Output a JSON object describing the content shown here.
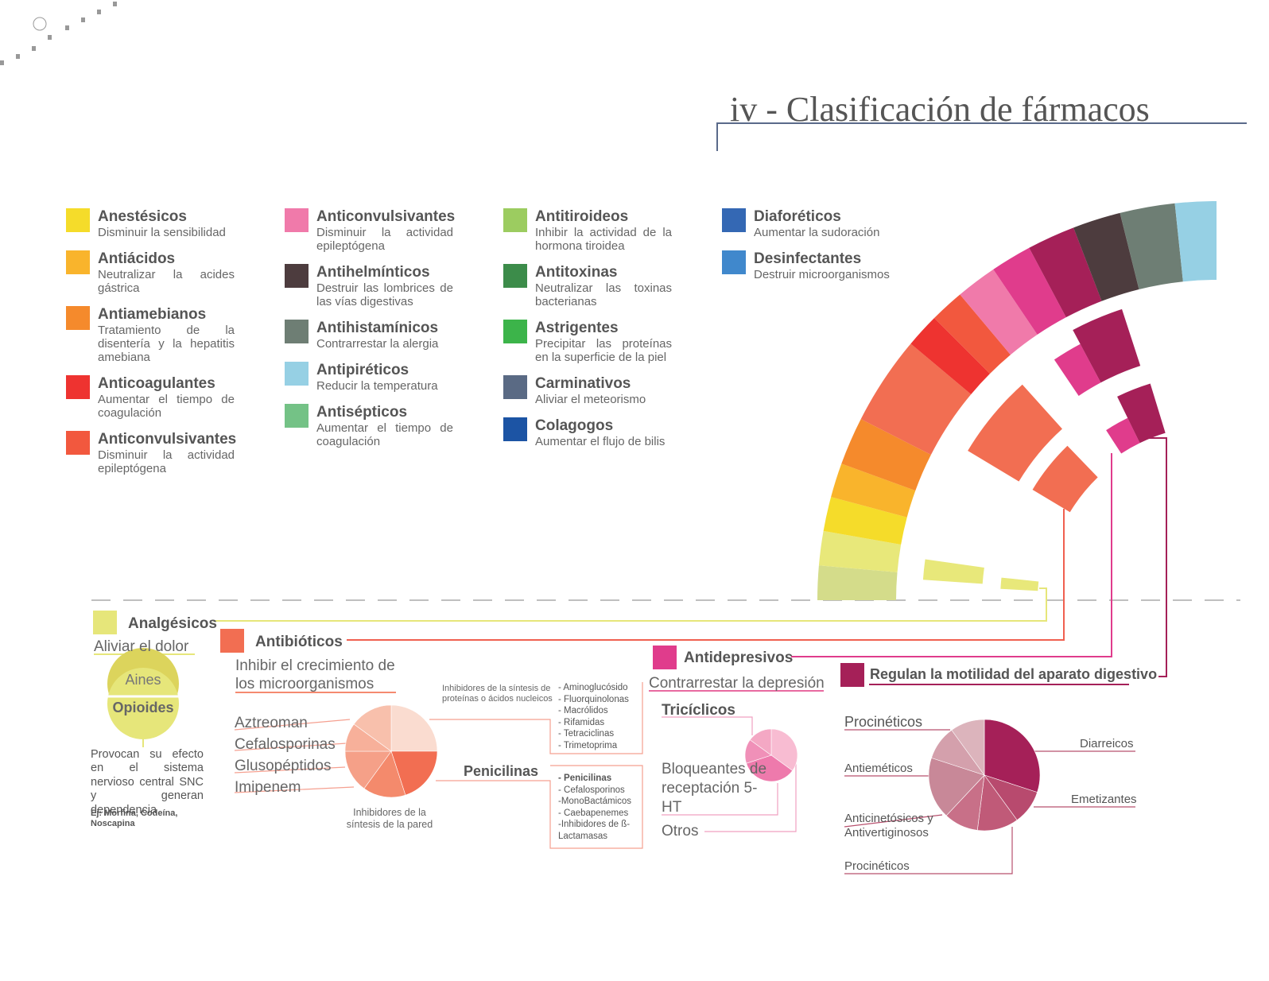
{
  "header": {
    "title": "iv -  Clasificación de fármacos"
  },
  "legend": {
    "columns": [
      [
        {
          "name": "Anestésicos",
          "description": "Disminuir la sensibilidad",
          "color": "#f5dc2a"
        },
        {
          "name": "Antiácidos",
          "description": "Neutralizar la acides gástrica",
          "color": "#f9b42c"
        },
        {
          "name": "Antiamebianos",
          "description": "Tratamiento de la disentería y la hepatitis amebiana",
          "color": "#f58a2c"
        },
        {
          "name": "Anticoagulantes",
          "description": "Aumentar el tiempo de coagulación",
          "color": "#ee3330"
        },
        {
          "name": "Anticonvulsivantes",
          "description": "Disminuir la actividad epileptógena",
          "color": "#f2583e"
        }
      ],
      [
        {
          "name": "Anticonvulsivantes",
          "description": "Disminuir la actividad epileptógena",
          "color": "#f07aaa"
        },
        {
          "name": "Antihelmínticos",
          "description": "Destruir las lombrices de las vías digestivas",
          "color": "#4d3c3e"
        },
        {
          "name": "Antihistamínicos",
          "description": "Contrarrestar la alergia",
          "color": "#6e7e74"
        },
        {
          "name": "Antipiréticos",
          "description": "Reducir la temperatura",
          "color": "#96d0e4"
        },
        {
          "name": "Antisépticos",
          "description": "Aumentar el tiempo de coagulación",
          "color": "#74c286"
        }
      ],
      [
        {
          "name": "Antitiroideos",
          "description": "Inhibir la actividad de la hormona tiroidea",
          "color": "#9ccc60"
        },
        {
          "name": "Antitoxinas",
          "description": "Neutralizar las toxinas bacterianas",
          "color": "#3c8c4a"
        },
        {
          "name": "Astrigentes",
          "description": "Precipitar las proteínas en la superficie de la piel",
          "color": "#3cb44a"
        },
        {
          "name": "Carminativos",
          "description": "Aliviar el meteorismo",
          "color": "#5a6a84"
        },
        {
          "name": "Colagogos",
          "description": "Aumentar el flujo de bilis",
          "color": "#1c54a4"
        }
      ],
      [
        {
          "name": "Diaforéticos",
          "description": "Aumentar la sudoración",
          "color": "#3468b4"
        },
        {
          "name": "Desinfectantes",
          "description": "Destruir microorganismos",
          "color": "#4088cc"
        }
      ]
    ]
  },
  "analgesicos": {
    "title": "Analgésicos",
    "subtitle": "Aliviar el dolor",
    "types": [
      "Aines",
      "Opioides"
    ],
    "description": "Provocan su efecto en el sistema nervioso central SNC y generan dependencia",
    "example": "Ej: Morfina, Codeína, Noscapina"
  },
  "antibioticos": {
    "title": "Antibióticos",
    "subtitle": "Inhibir el crecimiento de los microorganismos",
    "groups": [
      "Aztreoman",
      "Cefalosporinas",
      "Glusopéptidos",
      "Imipenem"
    ],
    "protein_note": "Inhibidores de la síntesis de proteínas o ácidos nucleicos",
    "protein_list": [
      "- Aminoglucósido",
      "- Fluorquinolonas",
      "- Macrólidos",
      "- Rifamidas",
      "- Tetraciclinas",
      "- Trimetoprima"
    ],
    "wall_note": "Inhibidores de la síntesis de la pared",
    "penicilinas": "Penicilinas",
    "wall_list": [
      "- Penicilinas",
      "- Cefalosporinos",
      "-MonoBactámicos",
      "- Caebapenemes",
      "-Inhibidores de ß-Lactamasas"
    ]
  },
  "antidepresivos": {
    "title": "Antidepresivos",
    "subtitle": "Contrarrestar la depresión",
    "types": [
      "Tricíclicos",
      "Bloqueantes de receptación 5-HT",
      "Otros"
    ]
  },
  "digestivo": {
    "title": "Regulan la motilidad del aparato digestivo",
    "left": [
      "Procinéticos",
      "Antieméticos",
      "Anticinetósicos y Antivertiginosos",
      "Procinéticos"
    ],
    "right": [
      "Diarreicos",
      "Emetizantes"
    ]
  }
}
